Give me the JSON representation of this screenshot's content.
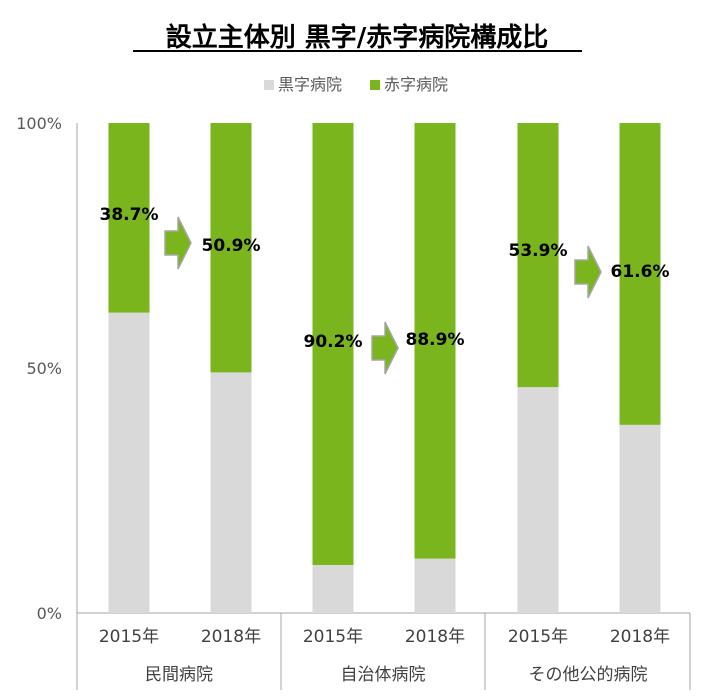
{
  "chart_data": {
    "type": "bar",
    "stacked": true,
    "title": "設立主体別 黒字/赤字病院構成比",
    "legend": {
      "position": "top",
      "entries": [
        "黒字病院",
        "赤字病院"
      ]
    },
    "y_ticks": [
      "100%",
      "50%",
      "0%"
    ],
    "ylim": [
      0,
      100
    ],
    "group_labels": [
      "民間病院",
      "自治体病院",
      "その他公的病院"
    ],
    "categories": [
      "2015年",
      "2018年",
      "2015年",
      "2018年",
      "2015年",
      "2018年"
    ],
    "series": [
      {
        "name": "黒字病院",
        "color": "#d9d9d9",
        "values": [
          61.3,
          49.1,
          9.8,
          11.1,
          46.1,
          38.4
        ]
      },
      {
        "name": "赤字病院",
        "color": "#7ab51d",
        "values": [
          38.7,
          50.9,
          90.2,
          88.9,
          53.9,
          61.6
        ]
      }
    ],
    "data_labels": [
      "38.7%",
      "50.9%",
      "90.2%",
      "88.9%",
      "53.9%",
      "61.6%"
    ],
    "arrow_color": "#7ab51d"
  }
}
